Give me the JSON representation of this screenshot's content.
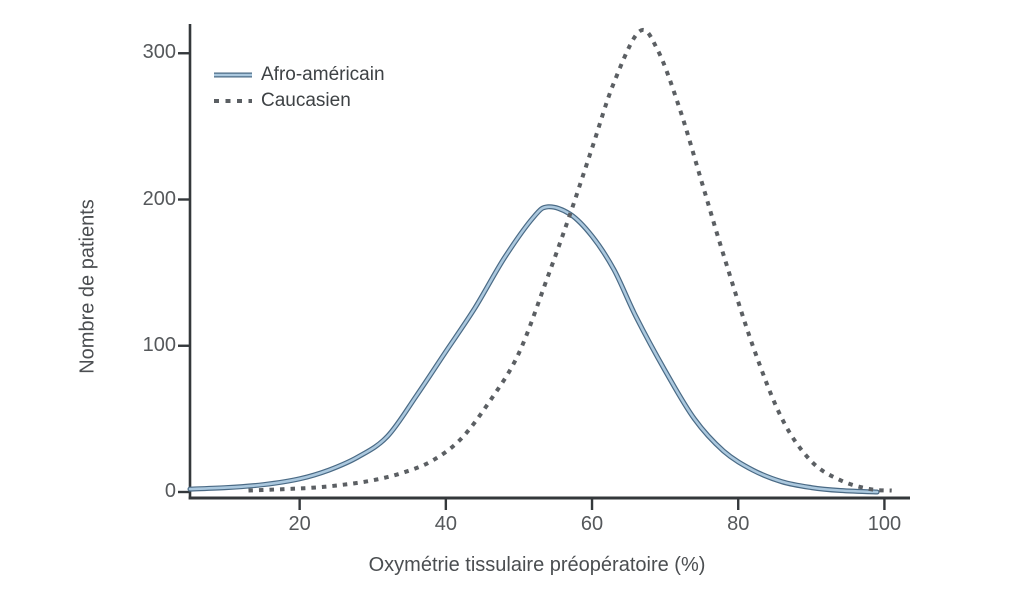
{
  "chart_data": {
    "type": "line",
    "title": "",
    "xlabel": "Oxymétrie tissulaire préopératoire (%)",
    "ylabel": "Nombre de patients",
    "xlim": [
      5,
      103.5
    ],
    "ylim": [
      0,
      320
    ],
    "xticks": [
      20,
      40,
      60,
      80,
      100
    ],
    "yticks": [
      0,
      100,
      200,
      300
    ],
    "grid": false,
    "legend_position": "upper-left-inside",
    "axis_color": "#34383b",
    "series": [
      {
        "name": "Afro-américain",
        "line": "solid",
        "stroke_outer": "#4a6a85",
        "stroke_inner": "#abc8de",
        "x": [
          5,
          10,
          15,
          20,
          24,
          28,
          32,
          36,
          40,
          44,
          48,
          52,
          54,
          57,
          60,
          63,
          66,
          70,
          74,
          78,
          82,
          86,
          90,
          94,
          99
        ],
        "y": [
          2,
          3,
          5,
          9,
          15,
          24,
          38,
          66,
          96,
          126,
          160,
          188,
          195,
          190,
          175,
          152,
          120,
          83,
          50,
          28,
          15,
          7,
          3,
          1,
          0
        ]
      },
      {
        "name": "Caucasien",
        "line": "dashed",
        "stroke": "#5b5f63",
        "x": [
          13,
          18,
          22,
          26,
          30,
          34,
          38,
          42,
          46,
          50,
          54,
          57,
          60,
          63,
          66.5,
          69,
          72,
          75,
          78,
          82,
          86,
          90,
          94,
          98,
          101
        ],
        "y": [
          1,
          2,
          3,
          5,
          8,
          13,
          21,
          36,
          62,
          95,
          148,
          190,
          235,
          280,
          315,
          302,
          262,
          212,
          162,
          100,
          50,
          21,
          8,
          2,
          1
        ]
      }
    ]
  }
}
